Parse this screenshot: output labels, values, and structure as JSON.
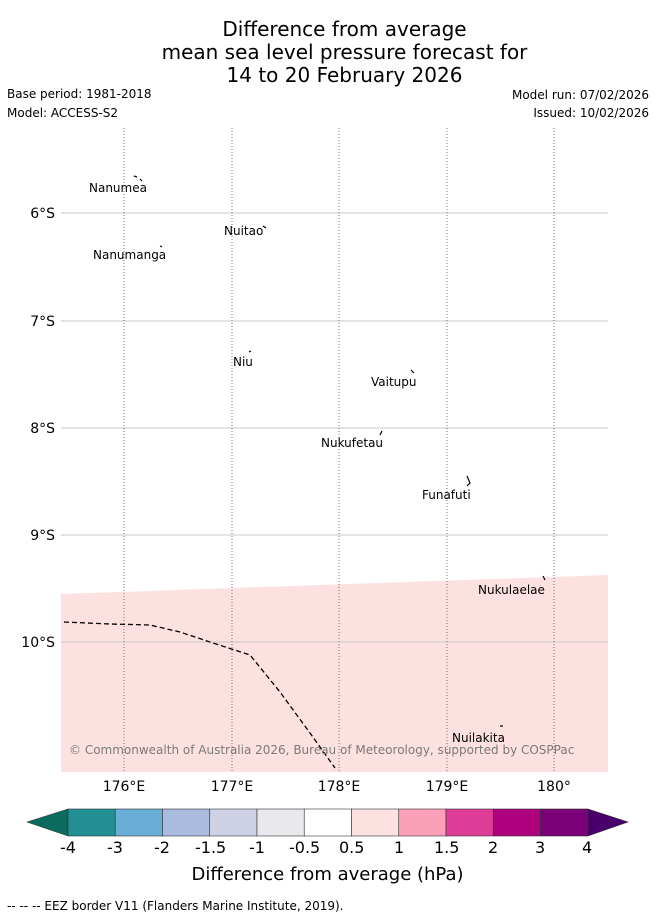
{
  "header": {
    "title_lines": [
      "Difference from average",
      "mean sea level pressure forecast for",
      "14 to 20 February 2026"
    ],
    "base_period": "Base period: 1981-2018",
    "model": "Model: ACCESS-S2",
    "model_run": "Model run: 07/02/2026",
    "issued": "Issued: 10/02/2026"
  },
  "map": {
    "lat_labels": [
      "6°S",
      "7°S",
      "8°S",
      "9°S",
      "10°S"
    ],
    "lon_labels": [
      "176°E",
      "177°E",
      "178°E",
      "179°E",
      "180°"
    ],
    "places": [
      {
        "name": "Nanumea",
        "lon": 176.2,
        "lat": -5.67
      },
      {
        "name": "Nuitao",
        "lon": 177.3,
        "lat": -6.12
      },
      {
        "name": "Nanumanga",
        "lon": 176.33,
        "lat": -6.29
      },
      {
        "name": "Niu",
        "lon": 177.17,
        "lat": -7.3
      },
      {
        "name": "Vaitupu",
        "lon": 178.67,
        "lat": -7.47
      },
      {
        "name": "Nukufetau",
        "lon": 178.38,
        "lat": -8.03
      },
      {
        "name": "Funafuti",
        "lon": 179.2,
        "lat": -8.52
      },
      {
        "name": "Nukulaelae",
        "lon": 179.85,
        "lat": -9.4
      },
      {
        "name": "Nuilakita",
        "lon": 179.5,
        "lat": -10.77
      }
    ],
    "anomaly_region_value": "0.5 to 1 hPa",
    "copyright": "© Commonwealth of Australia 2026, Bureau of Meteorology, supported by COSPPac"
  },
  "colorbar": {
    "colors": [
      "#0b6b5f",
      "#218f93",
      "#6aadd5",
      "#a9bcde",
      "#cfd2e7",
      "#e9e8ec",
      "#ffffff",
      "#fde1e0",
      "#fba0b8",
      "#de3c97",
      "#ae017e",
      "#7a0177",
      "#49006a"
    ],
    "tick_labels": [
      "-4",
      "-3",
      "-2",
      "-1.5",
      "-1",
      "-0.5",
      "0.5",
      "1",
      "1.5",
      "2",
      "3",
      "4"
    ],
    "title": "Difference from average (hPa)"
  },
  "footnote": "-- -- -- EEZ border V11 (Flanders Marine Institute, 2019)."
}
